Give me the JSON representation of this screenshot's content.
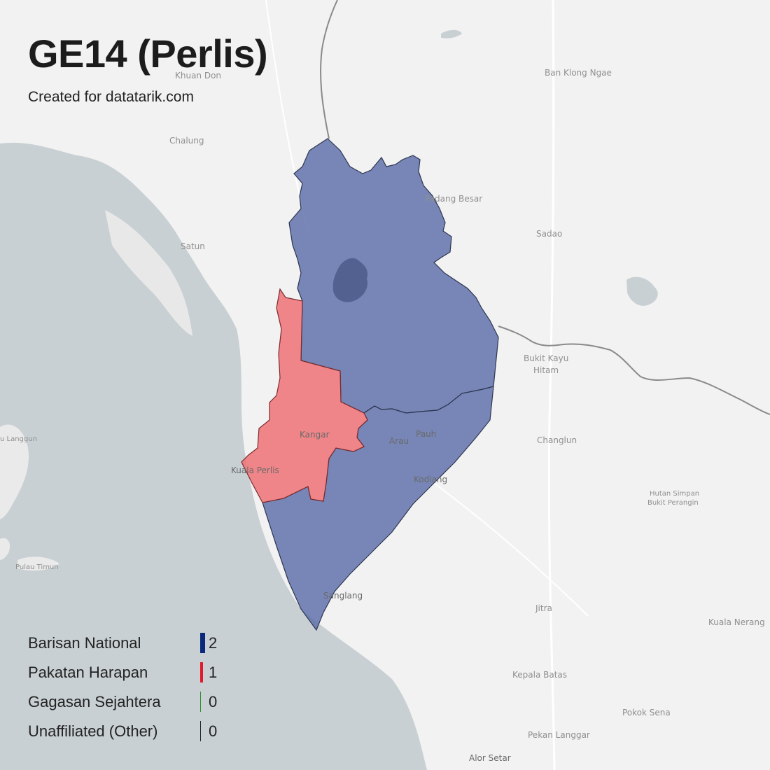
{
  "title": "GE14 (Perlis)",
  "subtitle": "Created for datatarik.com",
  "colors": {
    "land": "#f2f2f2",
    "sea": "#c9d0d3",
    "barisan_national": "#5b6ea8",
    "pakatan_harapan": "#ef7275",
    "border": "#333333"
  },
  "places": {
    "khuan_don": "Khuan Don",
    "ban_klong_ngae": "Ban Klong Ngae",
    "chalung": "Chalung",
    "satun": "Satun",
    "padang_besar": "Padang Besar",
    "sadao": "Sadao",
    "bukit_kayu_hitam_1": "Bukit Kayu",
    "bukit_kayu_hitam_2": "Hitam",
    "changlun": "Changlun",
    "kangar": "Kangar",
    "arau": "Arau",
    "pauh": "Pauh",
    "kuala_perlis": "Kuala Perlis",
    "kodiang": "Kodiang",
    "au_langgun": "u Langgun",
    "pulau_timun": "Pulau Timun",
    "sanglang": "Sanglang",
    "jitra": "Jitra",
    "hutan_simpan_1": "Hutan Simpan",
    "hutan_simpan_2": "Bukit Perangin",
    "kuala_nerang": "Kuala Nerang",
    "kepala_batas": "Kepala Batas",
    "pokok_sena": "Pokok Sena",
    "pekan_langgar": "Pekan Langgar",
    "alor_setar": "Alor Setar"
  },
  "legend": [
    {
      "name": "Barisan National",
      "value": "2",
      "color": "#0b2a7a"
    },
    {
      "name": "Pakatan Harapan",
      "value": "1",
      "color": "#e01a2b"
    },
    {
      "name": "Gagasan Sejahtera",
      "value": "0",
      "color": "#2e8b2e"
    },
    {
      "name": "Unaffiliated (Other)",
      "value": "0",
      "color": "#222222"
    }
  ],
  "seat_counts": {
    "barisan_national": 2,
    "pakatan_harapan": 1,
    "gagasan_sejahtera": 0,
    "unaffiliated": 0
  }
}
